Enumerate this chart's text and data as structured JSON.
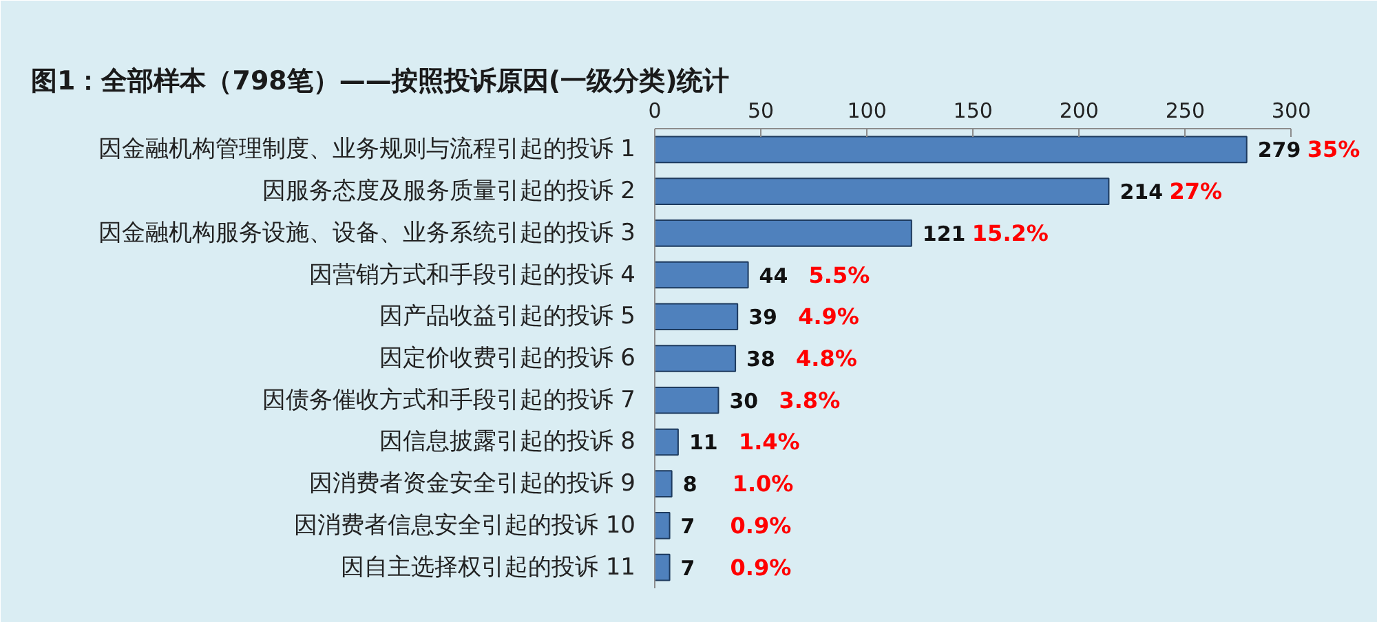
{
  "chart_data": {
    "type": "bar",
    "orientation": "horizontal",
    "title": "图1：全部样本（798笔）——按照投诉原因(一级分类)统计",
    "categories": [
      "因金融机构管理制度、业务规则与流程引起的投诉 1",
      "因服务态度及服务质量引起的投诉 2",
      "因金融机构服务设施、设备、业务系统引起的投诉 3",
      "因营销方式和手段引起的投诉 4",
      "因产品收益引起的投诉 5",
      "因定价收费引起的投诉 6",
      "因债务催收方式和手段引起的投诉 7",
      "因信息披露引起的投诉 8",
      "因消费者资金安全引起的投诉 9",
      "因消费者信息安全引起的投诉 10",
      "因自主选择权引起的投诉 11"
    ],
    "values": [
      279,
      214,
      121,
      44,
      39,
      38,
      30,
      11,
      8,
      7,
      7
    ],
    "color": "#4f81bd",
    "xlim": [
      0,
      300
    ],
    "xticks": [
      0,
      50,
      100,
      150,
      200,
      250,
      300
    ],
    "data_labels": true,
    "grid": false,
    "annotations": [
      {
        "text": "35%",
        "x": 279,
        "y": "因金融机构管理制度、业务规则与流程引起的投诉 1"
      },
      {
        "text": "27%",
        "x": 214,
        "y": "因服务态度及服务质量引起的投诉 2"
      },
      {
        "text": "15.2%",
        "x": 121,
        "y": "因金融机构服务设施、设备、业务系统引起的投诉 3"
      },
      {
        "text": "5.5%",
        "x": 44,
        "y": "因营销方式和手段引起的投诉 4"
      },
      {
        "text": "4.9%",
        "x": 39,
        "y": "因产品收益引起的投诉 5"
      },
      {
        "text": "4.8%",
        "x": 38,
        "y": "因定价收费引起的投诉 6"
      },
      {
        "text": "3.8%",
        "x": 30,
        "y": "因债务催收方式和手段引起的投诉 7"
      },
      {
        "text": "1.4%",
        "x": 11,
        "y": "因信息披露引起的投诉 8"
      },
      {
        "text": "1.0%",
        "x": 8,
        "y": "因消费者资金安全引起的投诉 9"
      },
      {
        "text": "0.9%",
        "x": 7,
        "y": "因消费者信息安全引起的投诉 10"
      },
      {
        "text": "0.9%",
        "x": 7,
        "y": "因自主选择权引起的投诉 11"
      }
    ]
  }
}
